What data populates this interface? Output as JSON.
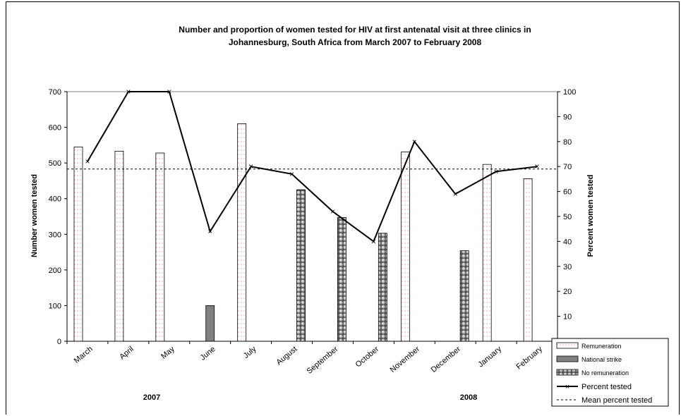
{
  "chart_data": {
    "type": "bar",
    "title_line1": "Number and proportion of women tested for HIV at first antenatal visit at three clinics in",
    "title_line2": "Johannesburg, South Africa from March 2007 to February 2008",
    "ylabel": "Number women tested",
    "y2label": "Percent women tested",
    "ylim": [
      0,
      700
    ],
    "y2lim": [
      0,
      100
    ],
    "y_ticks": [
      "0",
      "100",
      "200",
      "300",
      "400",
      "500",
      "600",
      "700"
    ],
    "y2_ticks": [
      "0",
      "10",
      "20",
      "30",
      "40",
      "50",
      "60",
      "70",
      "80",
      "90",
      "100"
    ],
    "categories": [
      "March",
      "April",
      "May",
      "June",
      "July",
      "August",
      "September",
      "October",
      "November",
      "December",
      "January",
      "February"
    ],
    "year_labels": [
      "2007",
      "2008"
    ],
    "bar_types": [
      "Remuneration",
      "Remuneration",
      "Remuneration",
      "National strike",
      "Remuneration",
      "No remuneration",
      "No remuneration",
      "No remuneration",
      "Remuneration",
      "No remuneration",
      "Remuneration",
      "Remuneration"
    ],
    "bar_values": [
      545,
      533,
      528,
      100,
      610,
      425,
      347,
      303,
      531,
      254,
      496,
      456
    ],
    "series": [
      {
        "name": "Percent tested",
        "values": [
          72,
          100,
          100,
          44,
          70,
          67,
          52,
          40,
          80,
          59,
          68,
          70
        ]
      },
      {
        "name": "Mean percent tested",
        "values": [
          69,
          69,
          69,
          69,
          69,
          69,
          69,
          69,
          69,
          69,
          69,
          69
        ]
      }
    ],
    "legend": [
      "Remuneration",
      "National strike",
      "No remuneration",
      "Percent tested",
      "Mean percent tested"
    ],
    "legend_position": "bottom-right",
    "grid": false,
    "colors": {
      "remuneration_dots": "#e8a0a8",
      "strike": "#808080",
      "no_remuneration": "#6a6a6a",
      "line": "#000000"
    }
  }
}
